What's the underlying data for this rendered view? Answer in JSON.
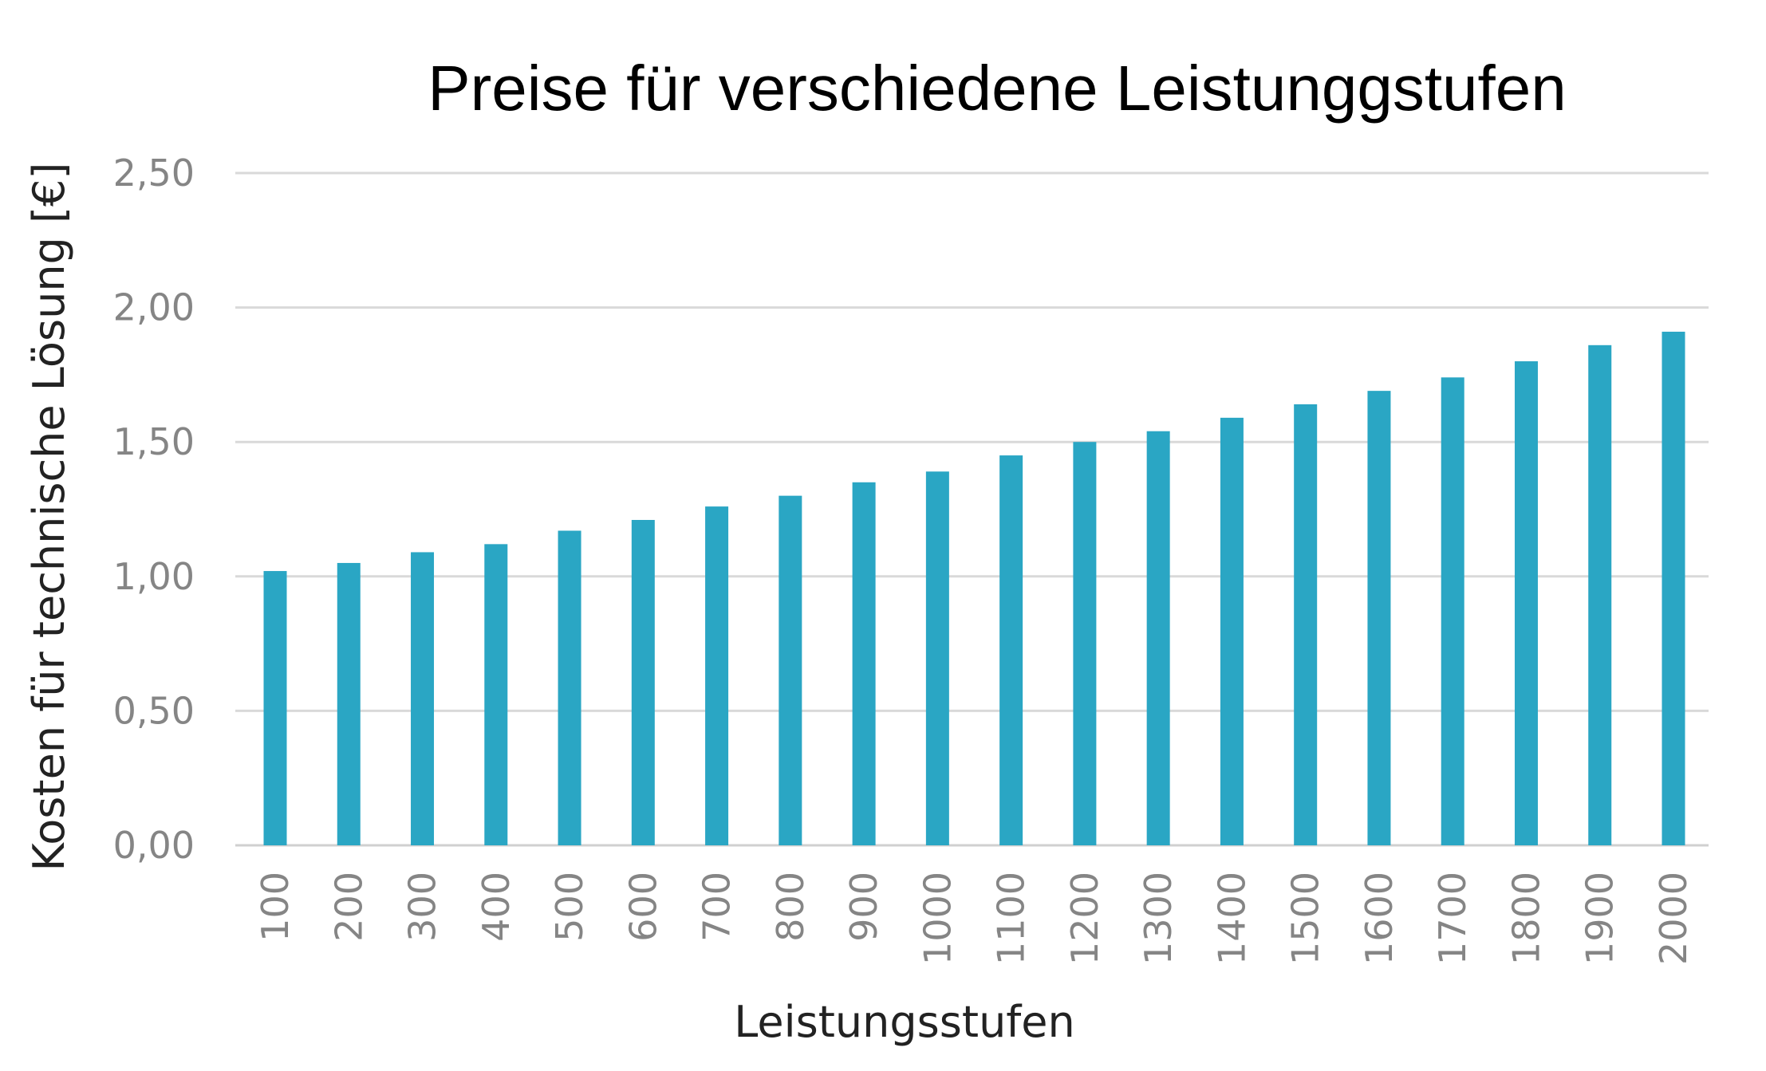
{
  "chart_data": {
    "type": "bar",
    "title": "Preise für verschiedene Leistunggstufen",
    "xlabel": "Leistungsstufen",
    "ylabel": "Kosten für technische Lösung [€]",
    "ylim": [
      0,
      2.5
    ],
    "yticks": [
      "0,00",
      "0,50",
      "1,00",
      "1,50",
      "2,00",
      "2,50"
    ],
    "grid": true,
    "legend": "none",
    "categories": [
      "100",
      "200",
      "300",
      "400",
      "500",
      "600",
      "700",
      "800",
      "900",
      "1000",
      "1100",
      "1200",
      "1300",
      "1400",
      "1500",
      "1600",
      "1700",
      "1800",
      "1900",
      "2000"
    ],
    "values": [
      1.02,
      1.05,
      1.09,
      1.12,
      1.17,
      1.21,
      1.26,
      1.3,
      1.35,
      1.39,
      1.45,
      1.5,
      1.54,
      1.59,
      1.64,
      1.69,
      1.74,
      1.8,
      1.86,
      1.91
    ],
    "colors": {
      "bar": "#2aa6c4"
    }
  }
}
